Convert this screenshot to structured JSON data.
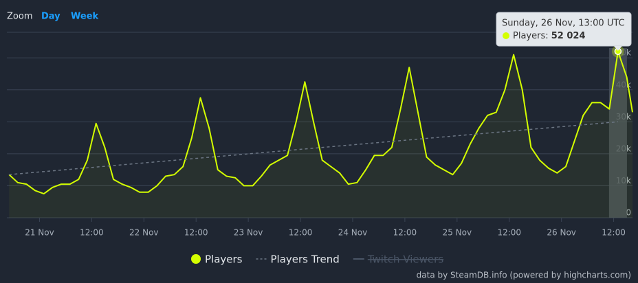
{
  "chart_data": {
    "type": "line",
    "zoom": {
      "label": "Zoom",
      "buttons": [
        "Day",
        "Week"
      ]
    },
    "credit": "data by SteamDB.info (powered by highcharts.com)",
    "xlim": [
      "20 Nov 16:30",
      "26 Nov 16:20"
    ],
    "xticks": [
      {
        "value": "21 Nov 00:00",
        "label": "21 Nov"
      },
      {
        "value": "21 Nov 12:00",
        "label": "12:00"
      },
      {
        "value": "22 Nov 00:00",
        "label": "22 Nov"
      },
      {
        "value": "22 Nov 12:00",
        "label": "12:00"
      },
      {
        "value": "23 Nov 00:00",
        "label": "23 Nov"
      },
      {
        "value": "23 Nov 12:00",
        "label": "12:00"
      },
      {
        "value": "24 Nov 00:00",
        "label": "24 Nov"
      },
      {
        "value": "24 Nov 12:00",
        "label": "12:00"
      },
      {
        "value": "25 Nov 00:00",
        "label": "25 Nov"
      },
      {
        "value": "25 Nov 12:00",
        "label": "12:00"
      },
      {
        "value": "26 Nov 00:00",
        "label": "26 Nov"
      },
      {
        "value": "26 Nov 12:00",
        "label": "12:00"
      }
    ],
    "ylim": [
      0,
      58000
    ],
    "yticks": [
      0,
      {
        "value": 10000,
        "label": "10k"
      },
      {
        "value": 20000,
        "label": "20k"
      },
      {
        "value": 30000,
        "label": "30k"
      },
      {
        "value": 40000,
        "label": "40k"
      },
      {
        "value": 50000,
        "label": "50k"
      }
    ],
    "grid": true,
    "x": [
      "20 Nov 17:00",
      "20 Nov 19:00",
      "20 Nov 21:00",
      "20 Nov 23:00",
      "21 Nov 01:00",
      "21 Nov 03:00",
      "21 Nov 05:00",
      "21 Nov 07:00",
      "21 Nov 09:00",
      "21 Nov 11:00",
      "21 Nov 13:00",
      "21 Nov 15:00",
      "21 Nov 17:00",
      "21 Nov 19:00",
      "21 Nov 21:00",
      "21 Nov 23:00",
      "22 Nov 01:00",
      "22 Nov 03:00",
      "22 Nov 05:00",
      "22 Nov 07:00",
      "22 Nov 09:00",
      "22 Nov 11:00",
      "22 Nov 13:00",
      "22 Nov 15:00",
      "22 Nov 17:00",
      "22 Nov 19:00",
      "22 Nov 21:00",
      "22 Nov 23:00",
      "23 Nov 01:00",
      "23 Nov 03:00",
      "23 Nov 05:00",
      "23 Nov 07:00",
      "23 Nov 09:00",
      "23 Nov 11:00",
      "23 Nov 13:00",
      "23 Nov 15:00",
      "23 Nov 17:00",
      "23 Nov 19:00",
      "23 Nov 21:00",
      "23 Nov 23:00",
      "24 Nov 01:00",
      "24 Nov 03:00",
      "24 Nov 05:00",
      "24 Nov 07:00",
      "24 Nov 09:00",
      "24 Nov 11:00",
      "24 Nov 13:00",
      "24 Nov 15:00",
      "24 Nov 17:00",
      "24 Nov 19:00",
      "24 Nov 21:00",
      "24 Nov 23:00",
      "25 Nov 01:00",
      "25 Nov 03:00",
      "25 Nov 05:00",
      "25 Nov 07:00",
      "25 Nov 09:00",
      "25 Nov 11:00",
      "25 Nov 13:00",
      "25 Nov 15:00",
      "25 Nov 17:00",
      "25 Nov 19:00",
      "25 Nov 21:00",
      "25 Nov 23:00",
      "26 Nov 01:00",
      "26 Nov 03:00",
      "26 Nov 05:00",
      "26 Nov 07:00",
      "26 Nov 09:00",
      "26 Nov 11:00",
      "26 Nov 13:00",
      "26 Nov 15:00",
      "26 Nov 16:20"
    ],
    "series": [
      {
        "name": "Players",
        "color": "#d4ff00",
        "values": [
          13500,
          11000,
          10500,
          8500,
          7500,
          9500,
          10500,
          10500,
          12000,
          18000,
          29500,
          22000,
          12000,
          10500,
          9500,
          8000,
          8000,
          10000,
          13000,
          13500,
          16000,
          25000,
          37500,
          28000,
          15000,
          13000,
          12500,
          10000,
          10000,
          13000,
          16500,
          18000,
          19500,
          30000,
          42500,
          30000,
          18000,
          16000,
          14000,
          10500,
          11000,
          15000,
          19500,
          19500,
          22000,
          34000,
          47000,
          33000,
          19000,
          16500,
          15000,
          13500,
          17000,
          23000,
          28000,
          32000,
          33000,
          40000,
          51000,
          40000,
          22000,
          18000,
          15500,
          14000,
          16000,
          24000,
          32000,
          36000,
          36000,
          34000,
          52024,
          44000,
          33000
        ]
      },
      {
        "name": "Players Trend",
        "color": "#6c7684",
        "dash": true,
        "x": [
          "20 Nov 17:00",
          "26 Nov 13:00"
        ],
        "values": [
          13500,
          30000
        ]
      },
      {
        "name": "Twitch Viewers",
        "color": "#4a5566",
        "visible": false
      }
    ],
    "tooltip": {
      "header": "Sunday, 26 Nov, 13:00 UTC",
      "label": "Players:",
      "value": 52024,
      "value_label": "52 024"
    }
  }
}
